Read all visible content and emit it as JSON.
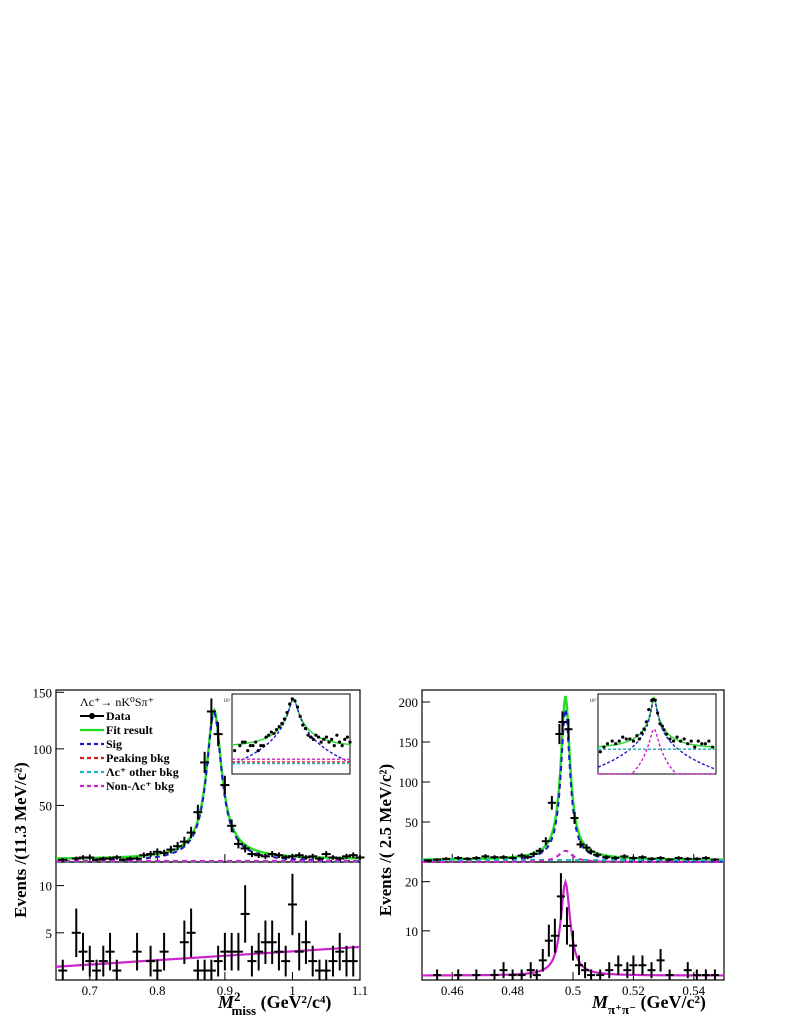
{
  "chart_data": [
    {
      "id": "left",
      "type": "line",
      "ylabel": "Events /(11.3 MeV/c²)",
      "xlabel_main": "M",
      "xlabel_sup": "2",
      "xlabel_sub": "miss",
      "xlabel_unit": " (GeV²/c⁴)",
      "xlim": [
        0.65,
        1.1
      ],
      "xticks": [
        {
          "v": 0.7,
          "label": "0.7"
        },
        {
          "v": 0.8,
          "label": "0.8"
        },
        {
          "v": 0.9,
          "label": "0.9"
        },
        {
          "v": 1.0,
          "label": "1"
        },
        {
          "v": 1.1,
          "label": "1.1"
        }
      ],
      "top": {
        "ylim": [
          0,
          152
        ],
        "yticks": [
          {
            "v": 50,
            "label": "50"
          },
          {
            "v": 100,
            "label": "100"
          },
          {
            "v": 150,
            "label": "150"
          }
        ],
        "legend": [
          {
            "label": "Λc⁺→ nK⁰Sπ⁺",
            "style": "title"
          },
          {
            "label": "Data",
            "style": "data",
            "color": "#000000"
          },
          {
            "label": "Fit result",
            "style": "solid",
            "color": "#22dd22"
          },
          {
            "label": "Sig",
            "style": "dashed",
            "color": "#1a1acc"
          },
          {
            "label": "Peaking bkg",
            "style": "dashed",
            "color": "#dd1a1a"
          },
          {
            "label": "Λc⁺ other bkg",
            "style": "dashed",
            "color": "#22bbbb"
          },
          {
            "label": "Non-Λc⁺ bkg",
            "style": "dashed",
            "color": "#cc22cc"
          }
        ],
        "data": {
          "x": [
            0.66,
            0.68,
            0.69,
            0.7,
            0.71,
            0.72,
            0.73,
            0.74,
            0.75,
            0.76,
            0.77,
            0.78,
            0.79,
            0.8,
            0.81,
            0.82,
            0.83,
            0.84,
            0.85,
            0.86,
            0.87,
            0.88,
            0.89,
            0.9,
            0.91,
            0.92,
            0.93,
            0.94,
            0.95,
            0.96,
            0.97,
            0.98,
            0.99,
            1.0,
            1.01,
            1.02,
            1.03,
            1.04,
            1.05,
            1.06,
            1.07,
            1.08,
            1.09,
            1.1
          ],
          "y": [
            2,
            3,
            4,
            4,
            2,
            3,
            3,
            4,
            2,
            3,
            3,
            6,
            7,
            9,
            8,
            11,
            14,
            18,
            26,
            44,
            88,
            133,
            113,
            68,
            32,
            16,
            12,
            7,
            6,
            5,
            7,
            6,
            4,
            5,
            6,
            4,
            5,
            3,
            7,
            4,
            3,
            5,
            6,
            4
          ]
        },
        "series": [
          {
            "name": "Fit result",
            "color": "#22dd22",
            "dash": "solid"
          },
          {
            "name": "Sig",
            "color": "#1a1acc",
            "dash": "dashed"
          },
          {
            "name": "Peaking bkg",
            "color": "#dd1a1a",
            "dash": "dashed"
          },
          {
            "name": "Λc⁺ other bkg",
            "color": "#22bbbb",
            "dash": "dashed"
          },
          {
            "name": "Non-Λc⁺ bkg",
            "color": "#cc22cc",
            "dash": "dashed"
          }
        ],
        "inset_tick_label": "10¹"
      },
      "bottom": {
        "ylim": [
          0,
          12.5
        ],
        "yticks": [
          {
            "v": 5,
            "label": "5"
          },
          {
            "v": 10,
            "label": "10"
          }
        ],
        "data": {
          "x": [
            0.66,
            0.68,
            0.69,
            0.7,
            0.71,
            0.72,
            0.73,
            0.74,
            0.77,
            0.79,
            0.8,
            0.81,
            0.84,
            0.85,
            0.86,
            0.87,
            0.88,
            0.89,
            0.9,
            0.91,
            0.92,
            0.93,
            0.94,
            0.95,
            0.96,
            0.97,
            0.98,
            0.99,
            1.0,
            1.01,
            1.02,
            1.03,
            1.04,
            1.05,
            1.06,
            1.07,
            1.08,
            1.09
          ],
          "y": [
            1,
            5,
            3,
            2,
            1,
            2,
            3,
            1,
            3,
            2,
            1,
            3,
            4,
            5,
            1,
            1,
            1,
            2,
            3,
            3,
            3,
            7,
            2,
            3,
            4,
            4,
            3,
            2,
            8,
            3,
            4,
            2,
            1,
            1,
            2,
            3,
            2,
            2
          ]
        },
        "line": {
          "name": "fit",
          "color": "#cc22cc",
          "x": [
            0.65,
            1.1
          ],
          "y": [
            1.4,
            3.5
          ]
        }
      }
    },
    {
      "id": "right",
      "type": "line",
      "ylabel": "Events /( 2.5 MeV/c²)",
      "xlabel_main": "M",
      "xlabel_sub": "π⁺π⁻",
      "xlabel_unit": " (GeV/c²)",
      "xlim": [
        0.45,
        0.55
      ],
      "xticks": [
        {
          "v": 0.46,
          "label": "0.46"
        },
        {
          "v": 0.48,
          "label": "0.48"
        },
        {
          "v": 0.5,
          "label": "0.5"
        },
        {
          "v": 0.52,
          "label": "0.52"
        },
        {
          "v": 0.54,
          "label": "0.54"
        }
      ],
      "top": {
        "ylim": [
          0,
          215
        ],
        "yticks": [
          {
            "v": 50,
            "label": "50"
          },
          {
            "v": 100,
            "label": "100"
          },
          {
            "v": 150,
            "label": "150"
          },
          {
            "v": 200,
            "label": "200"
          }
        ],
        "data": {
          "x": [
            0.452,
            0.455,
            0.458,
            0.462,
            0.465,
            0.468,
            0.471,
            0.474,
            0.477,
            0.48,
            0.483,
            0.485,
            0.487,
            0.489,
            0.491,
            0.493,
            0.4955,
            0.4965,
            0.4985,
            0.5005,
            0.5025,
            0.5045,
            0.506,
            0.508,
            0.511,
            0.514,
            0.517,
            0.52,
            0.523,
            0.526,
            0.529,
            0.532,
            0.535,
            0.538,
            0.541,
            0.544,
            0.547
          ],
          "y": [
            2,
            3,
            4,
            5,
            4,
            5,
            7,
            6,
            6,
            5,
            8,
            6,
            10,
            14,
            26,
            74,
            160,
            175,
            166,
            55,
            22,
            18,
            13,
            9,
            6,
            5,
            7,
            5,
            6,
            4,
            5,
            3,
            5,
            4,
            4,
            5,
            3
          ]
        },
        "series": [
          {
            "name": "Fit result",
            "color": "#22dd22",
            "dash": "solid"
          },
          {
            "name": "Sig",
            "color": "#1a1acc",
            "dash": "dashed"
          },
          {
            "name": "Peaking bkg",
            "color": "#dd1a1a",
            "dash": "dashed"
          },
          {
            "name": "Λc⁺ other bkg",
            "color": "#22bbbb",
            "dash": "dashed"
          },
          {
            "name": "Non-Λc⁺ bkg",
            "color": "#cc22cc",
            "dash": "dashed"
          }
        ],
        "inset_tick_label": "10¹"
      },
      "bottom": {
        "ylim": [
          0,
          24
        ],
        "yticks": [
          {
            "v": 10,
            "label": "10"
          },
          {
            "v": 20,
            "label": "20"
          }
        ],
        "data": {
          "x": [
            0.455,
            0.462,
            0.468,
            0.474,
            0.477,
            0.48,
            0.483,
            0.486,
            0.488,
            0.49,
            0.492,
            0.494,
            0.496,
            0.498,
            0.5,
            0.502,
            0.504,
            0.506,
            0.509,
            0.512,
            0.515,
            0.518,
            0.52,
            0.523,
            0.526,
            0.529,
            0.532,
            0.538,
            0.541,
            0.544,
            0.547
          ],
          "y": [
            1,
            1,
            1,
            1,
            2,
            1,
            1,
            2,
            1,
            4,
            8,
            9,
            17,
            11,
            7,
            3,
            2,
            1,
            1,
            2,
            3,
            2,
            3,
            3,
            2,
            4,
            1,
            2,
            1,
            1,
            1
          ]
        },
        "line": {
          "name": "fit",
          "color": "#cc22cc"
        }
      }
    }
  ]
}
